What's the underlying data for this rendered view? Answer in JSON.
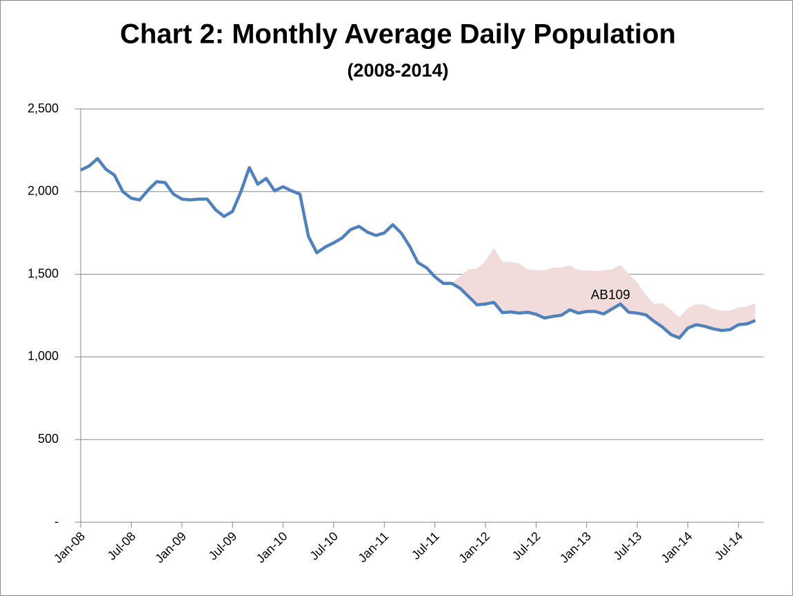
{
  "chart_data": {
    "type": "line",
    "title": "Chart 2: Monthly Average Daily Population",
    "subtitle": "(2008-2014)",
    "categories": [
      "Jan-08",
      null,
      null,
      null,
      null,
      null,
      "Jul-08",
      null,
      null,
      null,
      null,
      null,
      "Jan-09",
      null,
      null,
      null,
      null,
      null,
      "Jul-09",
      null,
      null,
      null,
      null,
      null,
      "Jan-10",
      null,
      null,
      null,
      null,
      null,
      "Jul-10",
      null,
      null,
      null,
      null,
      null,
      "Jan-11",
      null,
      null,
      null,
      null,
      null,
      "Jul-11",
      null,
      null,
      null,
      null,
      null,
      "Jan-12",
      null,
      null,
      null,
      null,
      null,
      "Jul-12",
      null,
      null,
      null,
      null,
      null,
      "Jan-13",
      null,
      null,
      null,
      null,
      null,
      "Jul-13",
      null,
      null,
      null,
      null,
      null,
      "Jan-14",
      null,
      null,
      null,
      null,
      null,
      "Jul-14",
      null,
      null
    ],
    "series": [
      {
        "color": "#4f81bd",
        "values": [
          2130,
          2155,
          2200,
          2135,
          2100,
          2000,
          1960,
          1950,
          2010,
          2060,
          2055,
          1985,
          1955,
          1950,
          1955,
          1955,
          1890,
          1850,
          1880,
          2000,
          2145,
          2045,
          2080,
          2005,
          2030,
          2005,
          1985,
          1730,
          1630,
          1665,
          1690,
          1720,
          1770,
          1790,
          1755,
          1735,
          1750,
          1800,
          1750,
          1670,
          1570,
          1540,
          1485,
          1445,
          1445,
          1415,
          1365,
          1315,
          1320,
          1330,
          1268,
          1272,
          1265,
          1270,
          1258,
          1235,
          1245,
          1252,
          1285,
          1265,
          1275,
          1275,
          1260,
          1290,
          1320,
          1270,
          1265,
          1255,
          1215,
          1180,
          1135,
          1115,
          1175,
          1195,
          1185,
          1170,
          1160,
          1165,
          1195,
          1200,
          1220
        ]
      },
      {
        "name": "AB109",
        "color": "#f2dcdb",
        "stacked": true,
        "values": [
          null,
          null,
          null,
          null,
          null,
          null,
          null,
          null,
          null,
          null,
          null,
          null,
          null,
          null,
          null,
          null,
          null,
          null,
          null,
          null,
          null,
          null,
          null,
          null,
          null,
          null,
          null,
          null,
          null,
          null,
          null,
          null,
          null,
          null,
          null,
          null,
          null,
          null,
          null,
          null,
          null,
          null,
          null,
          null,
          0,
          75,
          165,
          220,
          260,
          330,
          307,
          303,
          300,
          260,
          267,
          290,
          295,
          288,
          270,
          260,
          250,
          245,
          265,
          240,
          235,
          230,
          185,
          120,
          105,
          145,
          150,
          125,
          120,
          125,
          130,
          120,
          120,
          115,
          105,
          105,
          105
        ]
      }
    ],
    "ylim": [
      0,
      2500
    ],
    "yticks": [
      {
        "value": 0,
        "label": "-"
      },
      500,
      {
        "value": 1000,
        "label": "1,000"
      },
      {
        "value": 1500,
        "label": "1,500"
      },
      {
        "value": 2000,
        "label": "2,000"
      },
      {
        "value": 2500,
        "label": "2,500"
      }
    ],
    "grid": true
  }
}
